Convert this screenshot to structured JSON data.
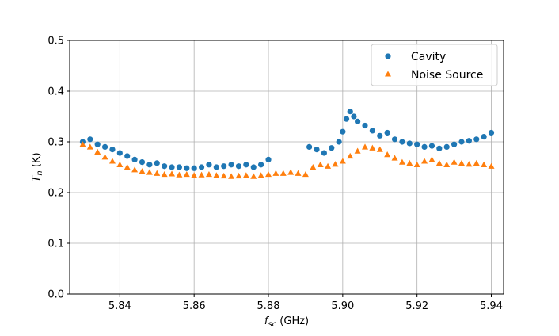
{
  "chart_data": {
    "type": "scatter",
    "xlabel_main": "f",
    "xlabel_sub": "sc",
    "xlabel_unit": " (GHz)",
    "ylabel_main": "T",
    "ylabel_sub": "n",
    "ylabel_unit": " (K)",
    "xlim": [
      5.8265,
      5.9433
    ],
    "ylim": [
      0.0,
      0.5
    ],
    "xticks": [
      5.84,
      5.86,
      5.88,
      5.9,
      5.92,
      5.94
    ],
    "xtick_labels": [
      "5.84",
      "5.86",
      "5.88",
      "5.90",
      "5.92",
      "5.94"
    ],
    "yticks": [
      0.0,
      0.1,
      0.2,
      0.3,
      0.4,
      0.5
    ],
    "ytick_labels": [
      "0.0",
      "0.1",
      "0.2",
      "0.3",
      "0.4",
      "0.5"
    ],
    "grid": true,
    "legend_position": "top-right",
    "series": [
      {
        "name": "Cavity",
        "marker": "circle",
        "color": "#1f77b4",
        "x": [
          5.83,
          5.832,
          5.834,
          5.836,
          5.838,
          5.84,
          5.842,
          5.844,
          5.846,
          5.848,
          5.85,
          5.852,
          5.854,
          5.856,
          5.858,
          5.86,
          5.862,
          5.864,
          5.866,
          5.868,
          5.87,
          5.872,
          5.874,
          5.876,
          5.878,
          5.88,
          5.891,
          5.893,
          5.895,
          5.897,
          5.899,
          5.9,
          5.901,
          5.902,
          5.903,
          5.904,
          5.906,
          5.908,
          5.91,
          5.912,
          5.914,
          5.916,
          5.918,
          5.92,
          5.922,
          5.924,
          5.926,
          5.928,
          5.93,
          5.932,
          5.934,
          5.936,
          5.938,
          5.94
        ],
        "y": [
          0.3,
          0.305,
          0.295,
          0.29,
          0.285,
          0.278,
          0.272,
          0.265,
          0.26,
          0.255,
          0.258,
          0.252,
          0.25,
          0.25,
          0.248,
          0.248,
          0.25,
          0.255,
          0.25,
          0.252,
          0.255,
          0.252,
          0.255,
          0.25,
          0.255,
          0.265,
          0.29,
          0.285,
          0.278,
          0.288,
          0.3,
          0.32,
          0.345,
          0.36,
          0.35,
          0.34,
          0.332,
          0.322,
          0.312,
          0.318,
          0.305,
          0.3,
          0.297,
          0.295,
          0.29,
          0.292,
          0.287,
          0.29,
          0.295,
          0.3,
          0.302,
          0.305,
          0.31,
          0.318
        ]
      },
      {
        "name": "Noise Source",
        "marker": "triangle",
        "color": "#ff7f0e",
        "x": [
          5.83,
          5.832,
          5.834,
          5.836,
          5.838,
          5.84,
          5.842,
          5.844,
          5.846,
          5.848,
          5.85,
          5.852,
          5.854,
          5.856,
          5.858,
          5.86,
          5.862,
          5.864,
          5.866,
          5.868,
          5.87,
          5.872,
          5.874,
          5.876,
          5.878,
          5.88,
          5.882,
          5.884,
          5.886,
          5.888,
          5.89,
          5.892,
          5.894,
          5.896,
          5.898,
          5.9,
          5.902,
          5.904,
          5.906,
          5.908,
          5.91,
          5.912,
          5.914,
          5.916,
          5.918,
          5.92,
          5.922,
          5.924,
          5.926,
          5.928,
          5.93,
          5.932,
          5.934,
          5.936,
          5.938,
          5.94
        ],
        "y": [
          0.295,
          0.29,
          0.28,
          0.27,
          0.262,
          0.255,
          0.25,
          0.245,
          0.242,
          0.24,
          0.238,
          0.236,
          0.237,
          0.235,
          0.236,
          0.234,
          0.235,
          0.236,
          0.234,
          0.233,
          0.232,
          0.233,
          0.234,
          0.232,
          0.234,
          0.236,
          0.238,
          0.238,
          0.24,
          0.238,
          0.236,
          0.25,
          0.255,
          0.252,
          0.256,
          0.262,
          0.272,
          0.282,
          0.29,
          0.288,
          0.285,
          0.275,
          0.268,
          0.26,
          0.258,
          0.255,
          0.262,
          0.265,
          0.258,
          0.255,
          0.26,
          0.258,
          0.256,
          0.258,
          0.255,
          0.252
        ]
      }
    ]
  }
}
